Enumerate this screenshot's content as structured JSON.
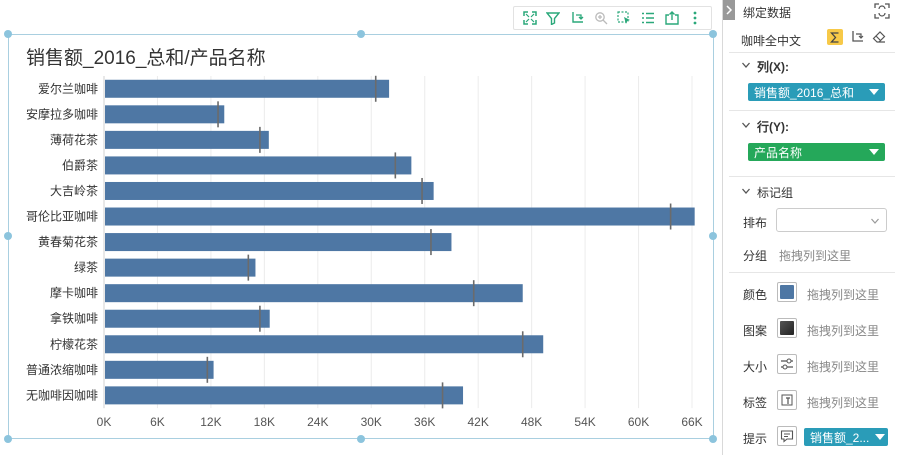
{
  "chart": {
    "title": "销售额_2016_总和/产品名称"
  },
  "chart_data": {
    "type": "bar",
    "orientation": "horizontal",
    "title": "销售额_2016_总和/产品名称",
    "categories": [
      "爱尔兰咖啡",
      "安摩拉多咖啡",
      "薄荷花茶",
      "伯爵茶",
      "大吉岭茶",
      "哥伦比亚咖啡",
      "黄春菊花茶",
      "绿茶",
      "摩卡咖啡",
      "拿铁咖啡",
      "柠檬花茶",
      "普通浓缩咖啡",
      "无咖啡因咖啡"
    ],
    "values": [
      32000,
      13500,
      18500,
      34500,
      37000,
      66300,
      39000,
      17000,
      47000,
      18600,
      49300,
      12300,
      40300
    ],
    "reference_marks": [
      30500,
      12800,
      17500,
      32700,
      35700,
      63600,
      36700,
      16200,
      41500,
      17500,
      47000,
      11600,
      38000
    ],
    "xlim": [
      0,
      66000
    ],
    "x_ticks": [
      "0K",
      "6K",
      "12K",
      "18K",
      "24K",
      "30K",
      "36K",
      "42K",
      "48K",
      "54K",
      "60K",
      "66K"
    ],
    "grid": true,
    "bar_color": "#4e77a4",
    "mark_color": "#6b6b6b"
  },
  "toolbar_icons": [
    "fit-screen-icon",
    "filter-icon",
    "swap-axes-icon",
    "zoom-icon",
    "select-icon",
    "list-icon",
    "export-icon",
    "more-icon"
  ],
  "panel": {
    "title": "绑定数据",
    "source": "咖啡全中文",
    "columns_label": "列(X):",
    "columns_value": "销售额_2016_总和",
    "rows_label": "行(Y):",
    "rows_value": "产品名称",
    "marks_label": "标记组",
    "layout_label": "排布",
    "group_label": "分组",
    "group_hint": "拖拽列到这里",
    "color_label": "颜色",
    "color_hint": "拖拽列到这里",
    "pattern_label": "图案",
    "pattern_hint": "拖拽列到这里",
    "size_label": "大小",
    "size_hint": "拖拽列到这里",
    "label_label": "标签",
    "label_hint": "拖拽列到这里",
    "tooltip_label": "提示",
    "tooltip_value": "销售额_2...",
    "colors": {
      "teal": "#2a9cb8",
      "green": "#25a85a",
      "accent_yellow": "#f7c948"
    }
  }
}
